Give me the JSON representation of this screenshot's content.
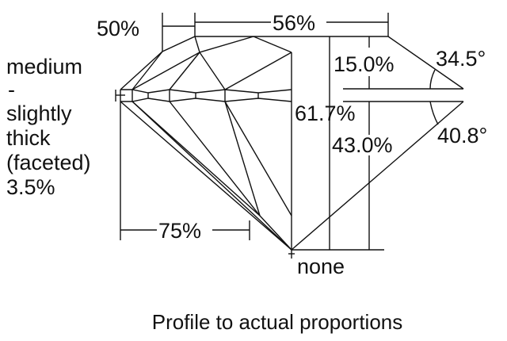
{
  "labels": {
    "crown_height_ratio": "50%",
    "table": "56%",
    "girdle": [
      "medium",
      "-",
      "slightly",
      "thick",
      "(faceted)",
      "3.5%"
    ],
    "crown_height": "15.0%",
    "crown_angle": "34.5°",
    "total_depth": "61.7%",
    "pavilion_depth": "43.0%",
    "pavilion_angle": "40.8°",
    "lower_half": "75%",
    "culet": "none"
  },
  "caption": "Profile to actual proportions"
}
